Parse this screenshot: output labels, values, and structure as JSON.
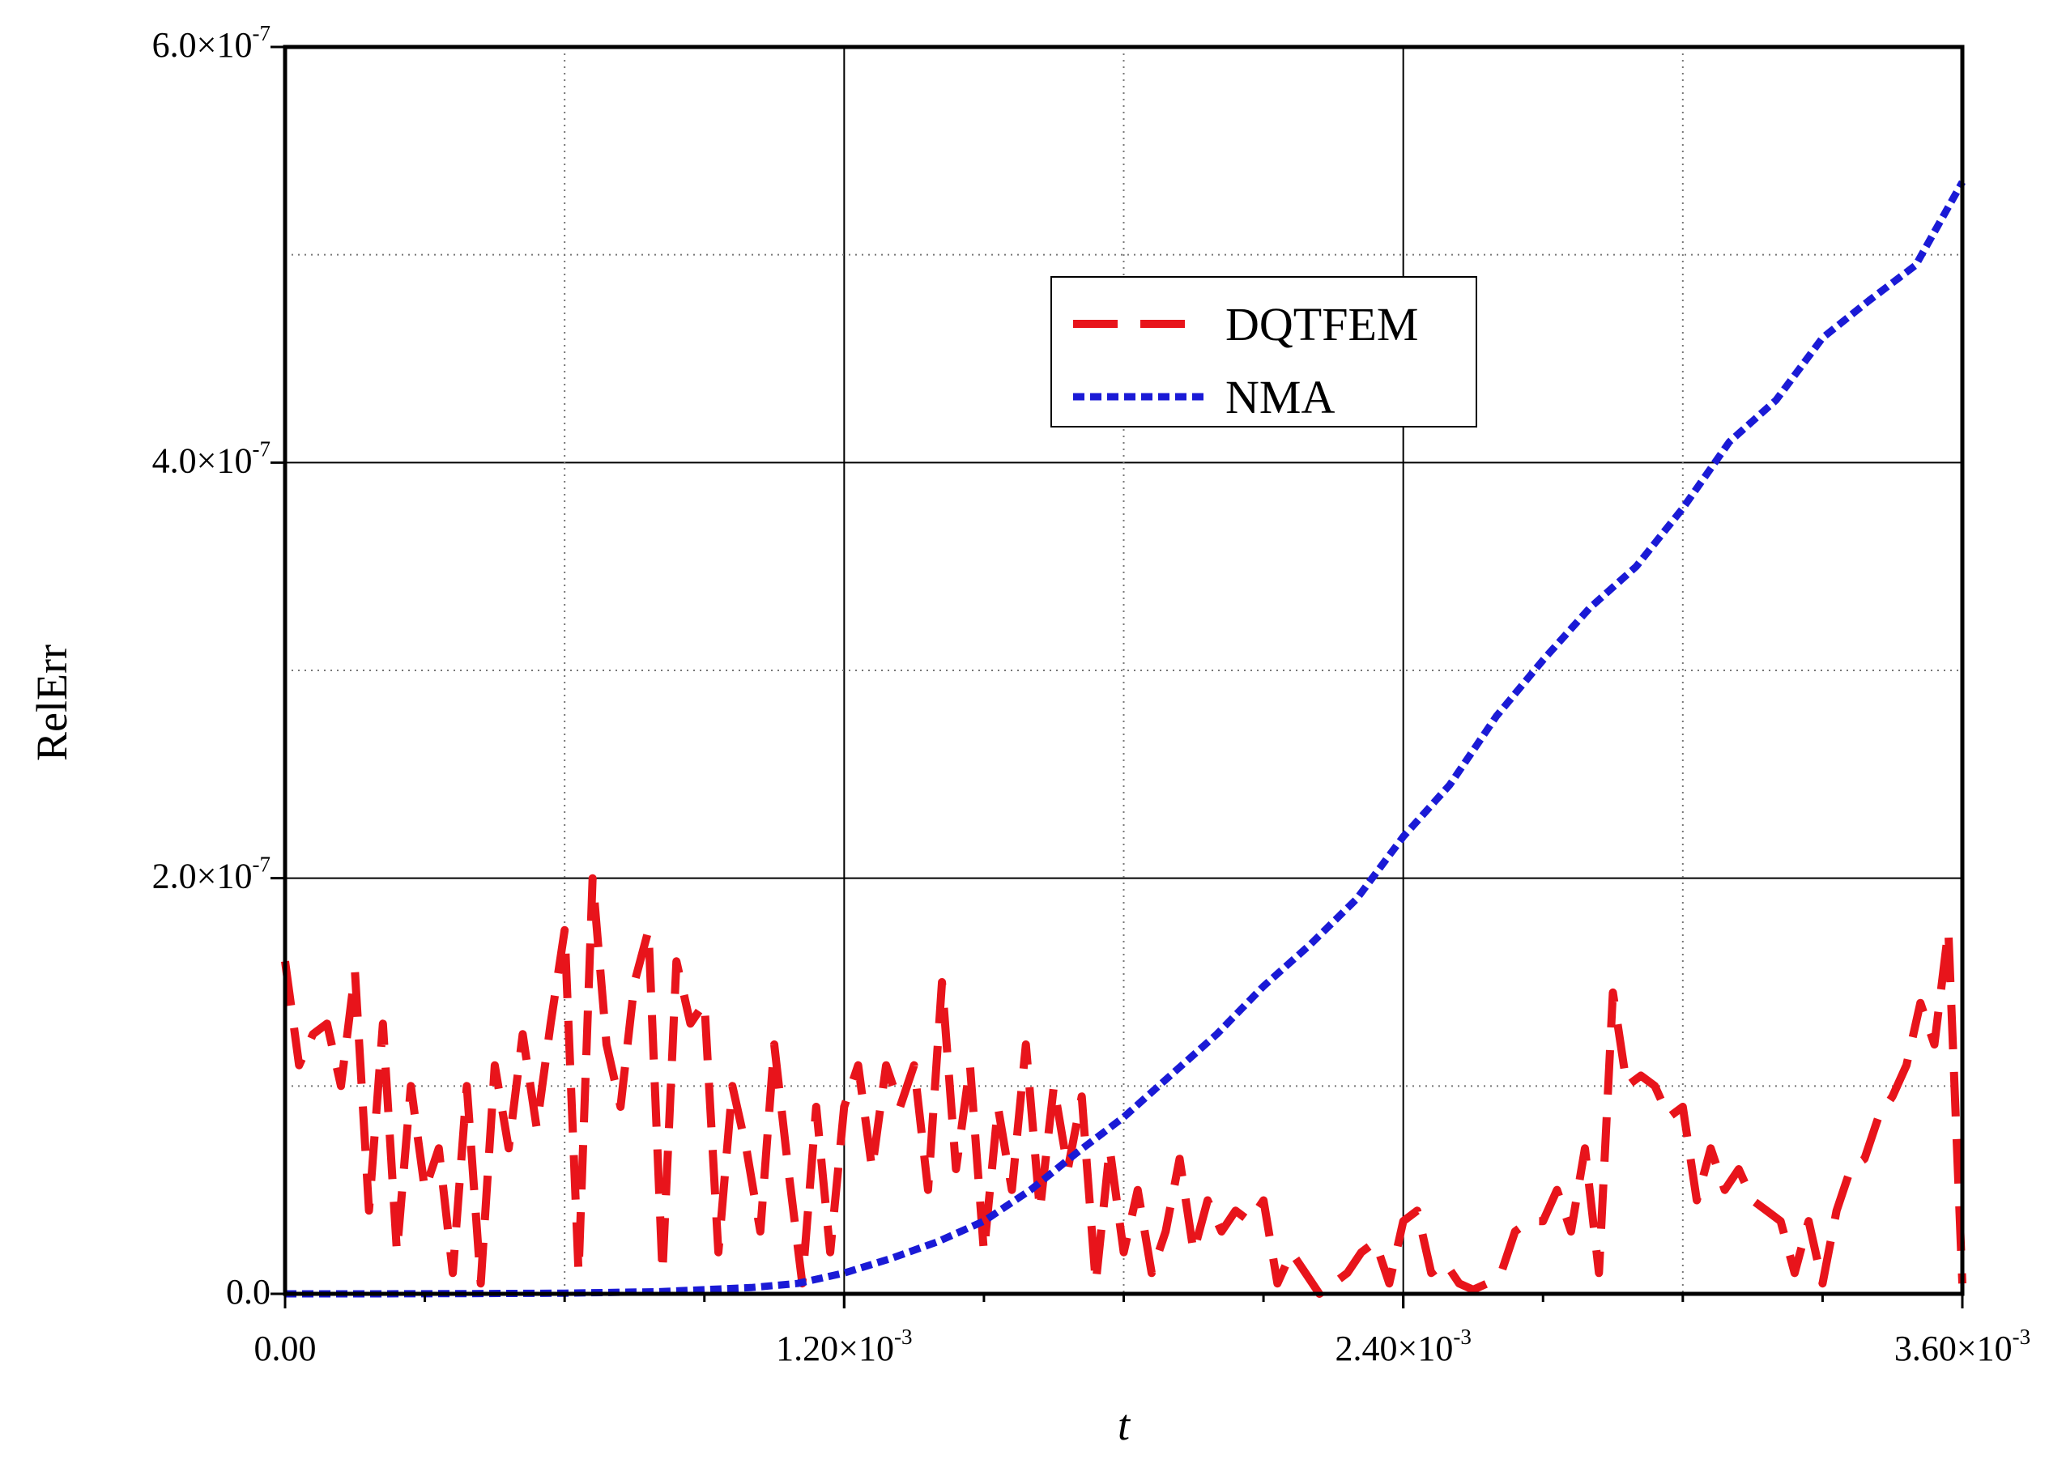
{
  "chart_data": {
    "type": "line",
    "title": "",
    "xlabel": "t",
    "ylabel": "RelErr",
    "xlim": [
      0,
      0.0036
    ],
    "ylim": [
      0,
      6e-07
    ],
    "grid": "major solid, minor dotted",
    "legend_position": "upper-center",
    "x_ticks": [
      {
        "value": 0,
        "label": "0.00",
        "exp": ""
      },
      {
        "value": 0.0012,
        "label": "1.20×10",
        "exp": "-3"
      },
      {
        "value": 0.0024,
        "label": "2.40×10",
        "exp": "-3"
      },
      {
        "value": 0.0036,
        "label": "3.60×10",
        "exp": "-3"
      }
    ],
    "y_ticks": [
      {
        "value": 0,
        "label": "0.0",
        "exp": ""
      },
      {
        "value": 2e-07,
        "label": "2.0×10",
        "exp": "-7"
      },
      {
        "value": 4e-07,
        "label": "4.0×10",
        "exp": "-7"
      },
      {
        "value": 6e-07,
        "label": "6.0×10",
        "exp": "-7"
      }
    ],
    "series": [
      {
        "name": "DQTFEM",
        "color": "#e8141b",
        "style": "long-dash",
        "x": [
          0,
          3e-05,
          6e-05,
          9e-05,
          0.00012,
          0.00015,
          0.00018,
          0.00021,
          0.00024,
          0.00027,
          0.0003,
          0.00033,
          0.00036,
          0.00039,
          0.00042,
          0.00045,
          0.00048,
          0.00051,
          0.00054,
          0.00057,
          0.0006,
          0.00063,
          0.00066,
          0.00069,
          0.00072,
          0.00075,
          0.00078,
          0.00081,
          0.00084,
          0.00087,
          0.0009,
          0.00093,
          0.00096,
          0.00099,
          0.00102,
          0.00105,
          0.00108,
          0.00111,
          0.00114,
          0.00117,
          0.0012,
          0.00123,
          0.00126,
          0.00129,
          0.00132,
          0.00135,
          0.00138,
          0.00141,
          0.00144,
          0.00147,
          0.0015,
          0.00153,
          0.00156,
          0.00159,
          0.00162,
          0.00165,
          0.00168,
          0.00171,
          0.00174,
          0.00177,
          0.0018,
          0.00183,
          0.00186,
          0.00189,
          0.00192,
          0.00195,
          0.00198,
          0.00201,
          0.00204,
          0.00207,
          0.0021,
          0.00213,
          0.00216,
          0.00219,
          0.00222,
          0.00225,
          0.00228,
          0.00231,
          0.00234,
          0.00237,
          0.0024,
          0.00243,
          0.00246,
          0.00249,
          0.00252,
          0.00255,
          0.00258,
          0.00261,
          0.00264,
          0.00267,
          0.0027,
          0.00273,
          0.00276,
          0.00279,
          0.00282,
          0.00285,
          0.00288,
          0.00291,
          0.00294,
          0.00297,
          0.003,
          0.00303,
          0.00306,
          0.00309,
          0.00312,
          0.00315,
          0.00318,
          0.00321,
          0.00324,
          0.00327,
          0.0033,
          0.00333,
          0.00336,
          0.00339,
          0.00342,
          0.00345,
          0.00348,
          0.00351,
          0.00354,
          0.00357,
          0.0036
        ],
        "values": [
          1.6e-07,
          1.1e-07,
          1.25e-07,
          1.3e-07,
          1e-07,
          1.55e-07,
          4e-08,
          1.3e-07,
          2e-08,
          1e-07,
          5e-08,
          7e-08,
          1e-08,
          1e-07,
          5e-09,
          1.1e-07,
          7e-08,
          1.25e-07,
          8e-08,
          1.3e-07,
          1.75e-07,
          1e-08,
          2e-07,
          1.2e-07,
          9e-08,
          1.5e-07,
          1.75e-07,
          1e-08,
          1.6e-07,
          1.3e-07,
          1.4e-07,
          2e-08,
          1e-07,
          7e-08,
          3e-08,
          1.2e-07,
          6e-08,
          5e-09,
          9e-08,
          2e-08,
          9e-08,
          1.1e-07,
          6e-08,
          1.1e-07,
          9e-08,
          1.1e-07,
          5e-08,
          1.5e-07,
          6e-08,
          1.1e-07,
          2e-08,
          9e-08,
          5e-08,
          1.2e-07,
          4e-08,
          1e-07,
          6e-08,
          9.5e-08,
          5e-09,
          7e-08,
          2e-08,
          5e-08,
          1e-08,
          3e-08,
          6.5e-08,
          2e-08,
          4.5e-08,
          3e-08,
          4e-08,
          3.5e-08,
          4.5e-08,
          5e-09,
          2e-08,
          1e-08,
          0.0,
          5e-09,
          1e-08,
          2e-08,
          2.5e-08,
          5e-09,
          3.5e-08,
          4e-08,
          1e-08,
          1.5e-08,
          5e-09,
          2e-09,
          5e-09,
          1e-08,
          3e-08,
          3.5e-08,
          3.5e-08,
          5e-08,
          3e-08,
          7e-08,
          1e-08,
          1.45e-07,
          1e-07,
          1.05e-07,
          1e-07,
          8.5e-08,
          9e-08,
          4.5e-08,
          7e-08,
          5e-08,
          6e-08,
          4.5e-08,
          4e-08,
          3.5e-08,
          1e-08,
          3.5e-08,
          5e-09,
          4e-08,
          6e-08,
          6.5e-08,
          8.5e-08,
          9.5e-08,
          1.1e-07,
          1.4e-07,
          1.2e-07,
          1.75e-07,
          5e-09
        ]
      },
      {
        "name": "NMA",
        "color": "#1a1ad6",
        "style": "short-dash",
        "x": [
          0,
          0.0002,
          0.0004,
          0.0006,
          0.0008,
          0.001,
          0.0011,
          0.0012,
          0.0013,
          0.0014,
          0.0015,
          0.0016,
          0.0017,
          0.0018,
          0.0019,
          0.002,
          0.0021,
          0.0022,
          0.0023,
          0.0024,
          0.0025,
          0.0026,
          0.0027,
          0.0028,
          0.0029,
          0.003,
          0.0031,
          0.0032,
          0.0033,
          0.0034,
          0.0035,
          0.0036
        ],
        "values": [
          0,
          0,
          1e-10,
          3e-10,
          1e-09,
          3e-09,
          5e-09,
          1e-08,
          1.7e-08,
          2.5e-08,
          3.5e-08,
          5e-08,
          6.8e-08,
          8.5e-08,
          1.05e-07,
          1.25e-07,
          1.48e-07,
          1.68e-07,
          1.9e-07,
          2.2e-07,
          2.45e-07,
          2.78e-07,
          3.05e-07,
          3.3e-07,
          3.5e-07,
          3.78e-07,
          4.1e-07,
          4.3e-07,
          4.6e-07,
          4.78e-07,
          4.95e-07,
          5.35e-07
        ]
      }
    ]
  }
}
